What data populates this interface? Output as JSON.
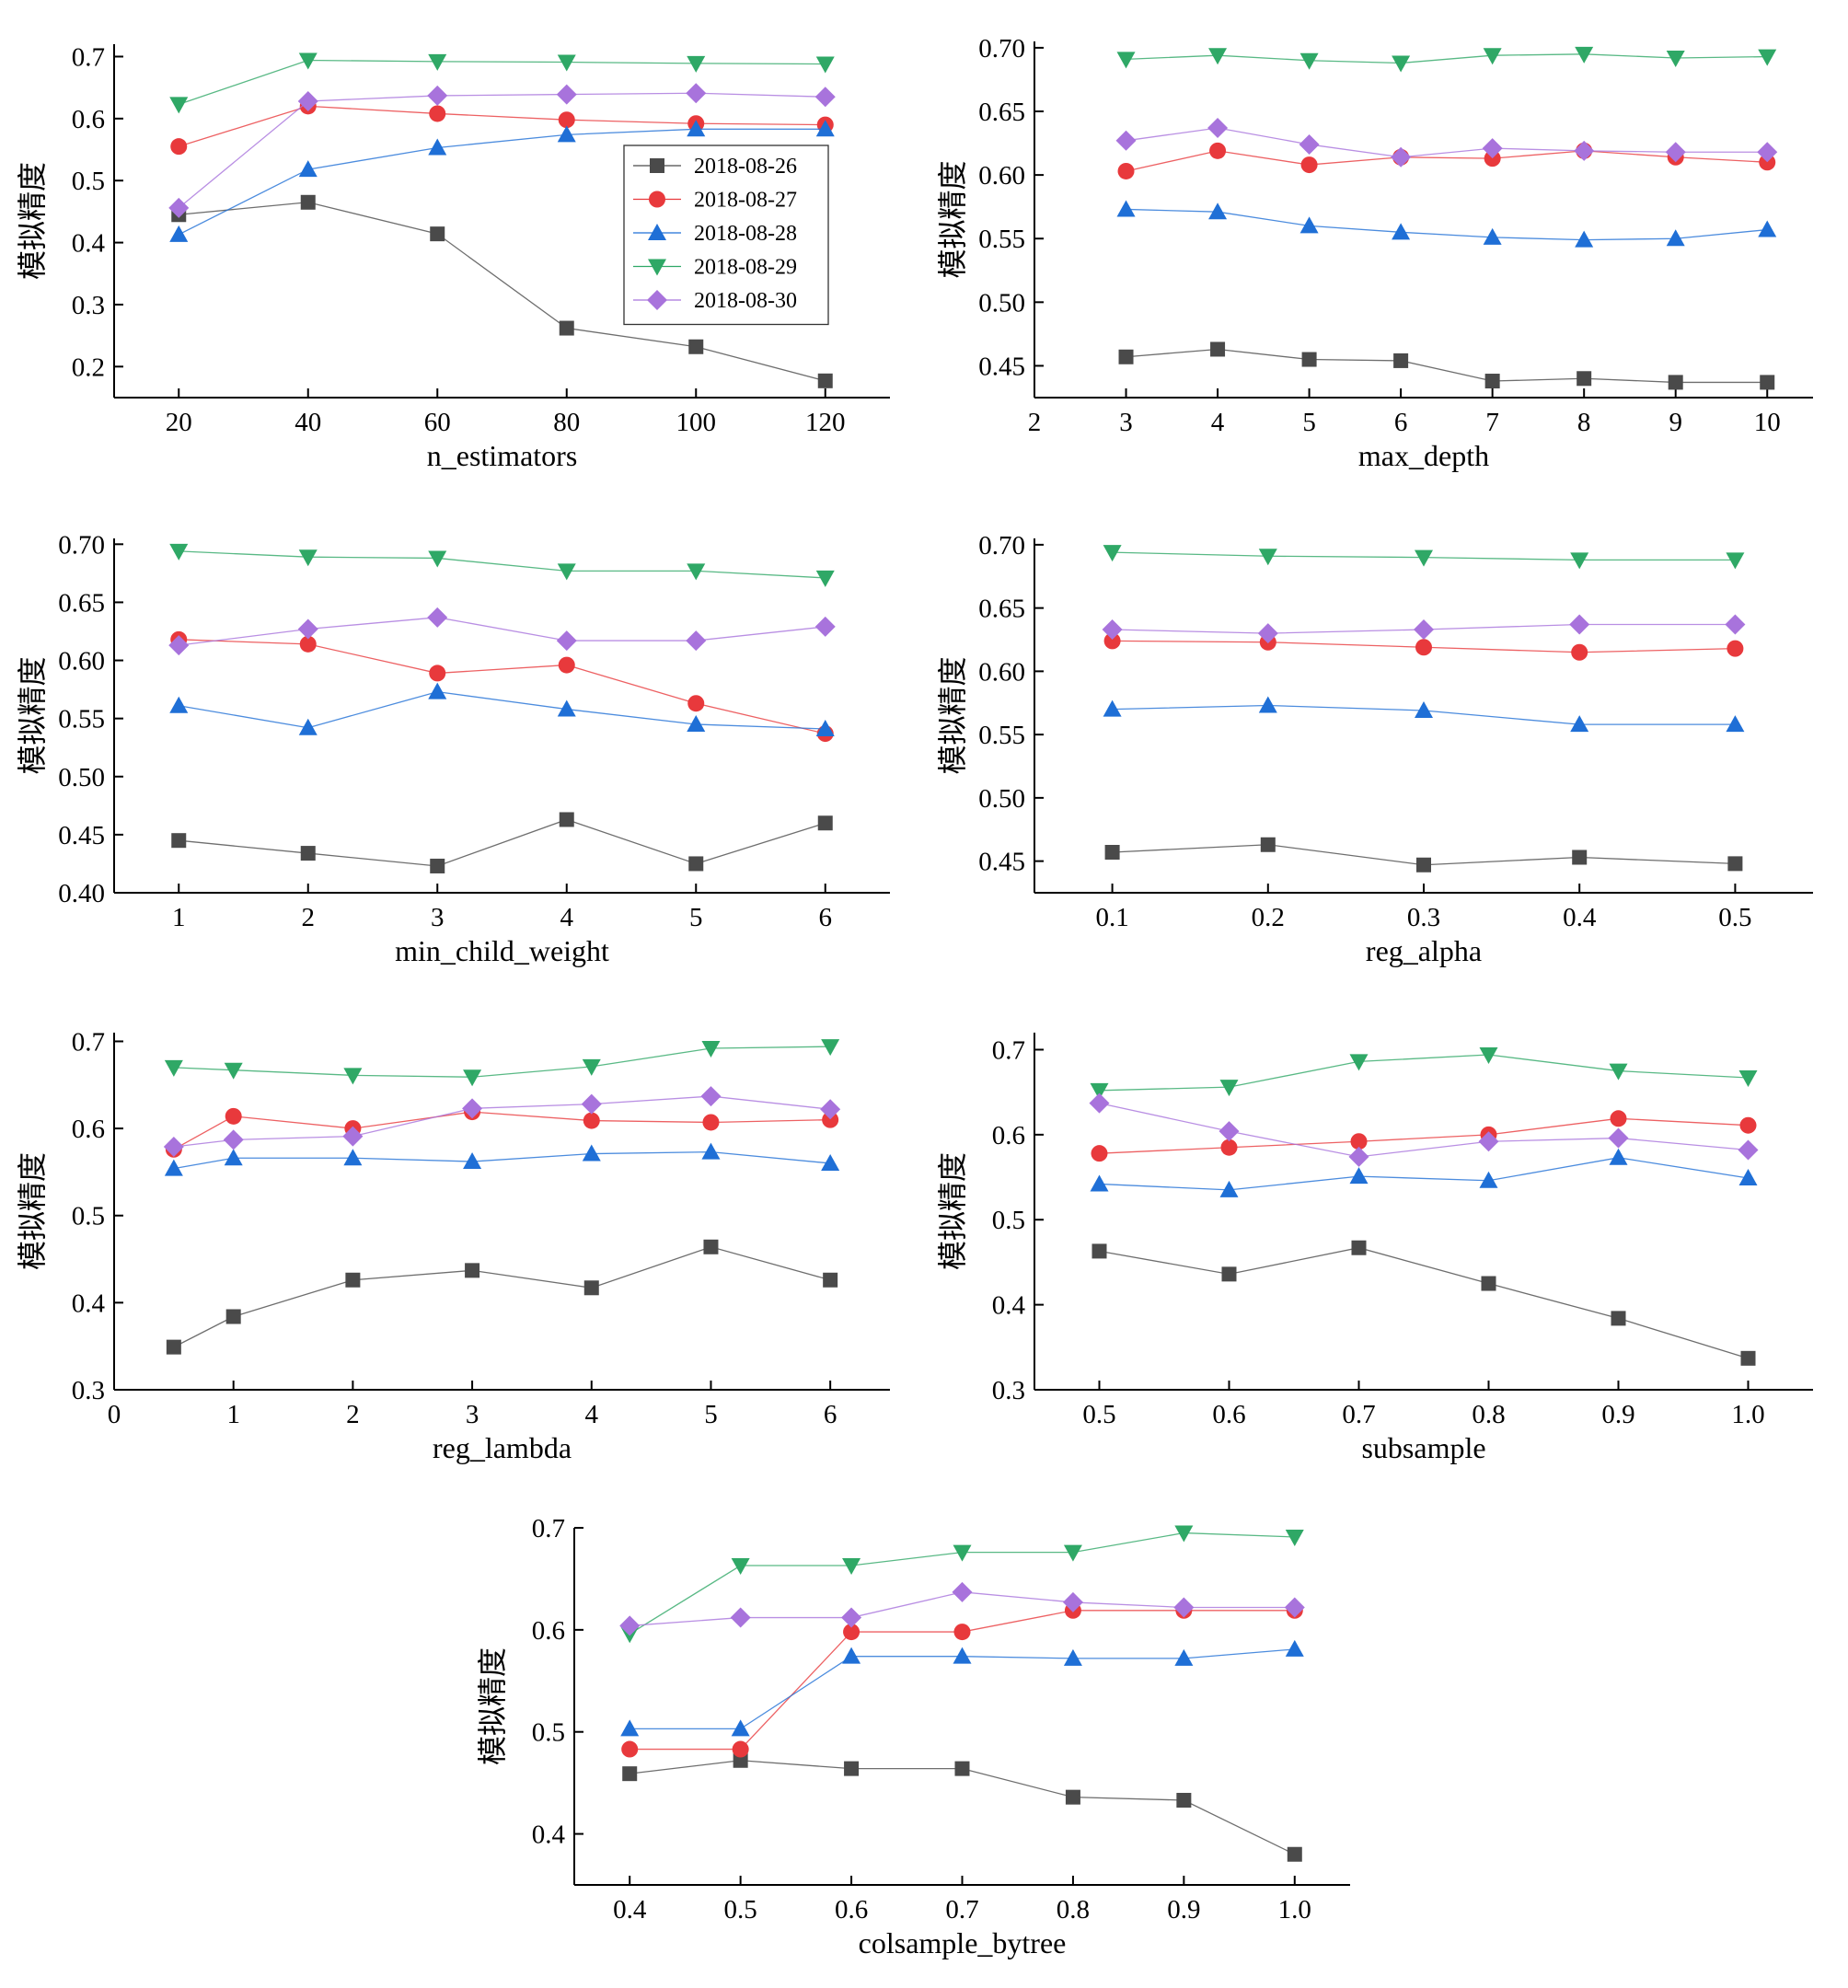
{
  "colors": {
    "2018-08-26": "#4a4a4a",
    "2018-08-27": "#e8393c",
    "2018-08-28": "#1f6fd6",
    "2018-08-29": "#2fa866",
    "2018-08-30": "#a873dc"
  },
  "markers": {
    "2018-08-26": "square",
    "2018-08-27": "circle",
    "2018-08-28": "triangle-up",
    "2018-08-29": "triangle-down",
    "2018-08-30": "diamond"
  },
  "legend": {
    "placement": "inside top-right of first panel",
    "entries": [
      "2018-08-26",
      "2018-08-27",
      "2018-08-28",
      "2018-08-29",
      "2018-08-30"
    ]
  },
  "chart_data": [
    {
      "type": "line",
      "xlabel": "n_estimators",
      "ylabel": "模拟精度",
      "xlim": [
        10,
        130
      ],
      "ylim": [
        0.15,
        0.72
      ],
      "xticks": [
        20,
        40,
        60,
        80,
        100,
        120
      ],
      "xtick_labels": [
        "20",
        "40",
        "60",
        "80",
        "100",
        "120"
      ],
      "yticks": [
        0.2,
        0.3,
        0.4,
        0.5,
        0.6,
        0.7
      ],
      "ytick_labels": [
        "0.2",
        "0.3",
        "0.4",
        "0.5",
        "0.6",
        "0.7"
      ],
      "x": [
        20,
        40,
        60,
        80,
        100,
        120
      ],
      "series": [
        {
          "name": "2018-08-26",
          "values": [
            0.445,
            0.465,
            0.414,
            0.262,
            0.232,
            0.177
          ]
        },
        {
          "name": "2018-08-27",
          "values": [
            0.555,
            0.62,
            0.608,
            0.598,
            0.592,
            0.59
          ]
        },
        {
          "name": "2018-08-28",
          "values": [
            0.413,
            0.518,
            0.553,
            0.574,
            0.583,
            0.583
          ]
        },
        {
          "name": "2018-08-29",
          "values": [
            0.623,
            0.694,
            0.692,
            0.691,
            0.689,
            0.688
          ]
        },
        {
          "name": "2018-08-30",
          "values": [
            0.456,
            0.628,
            0.637,
            0.639,
            0.641,
            0.635
          ]
        }
      ],
      "legend": true
    },
    {
      "type": "line",
      "xlabel": "max_depth",
      "ylabel": "模拟精度",
      "xlim": [
        2,
        10.5
      ],
      "ylim": [
        0.425,
        0.705
      ],
      "xticks": [
        2,
        3,
        4,
        5,
        6,
        7,
        8,
        9,
        10
      ],
      "xtick_labels": [
        "2",
        "3",
        "4",
        "5",
        "6",
        "7",
        "8",
        "9",
        "10"
      ],
      "yticks": [
        0.45,
        0.5,
        0.55,
        0.6,
        0.65,
        0.7
      ],
      "ytick_labels": [
        "0.45",
        "0.50",
        "0.55",
        "0.60",
        "0.65",
        "0.70"
      ],
      "x": [
        3,
        4,
        5,
        6,
        7,
        8,
        9,
        10
      ],
      "series": [
        {
          "name": "2018-08-26",
          "values": [
            0.457,
            0.463,
            0.455,
            0.454,
            0.438,
            0.44,
            0.437,
            0.437
          ]
        },
        {
          "name": "2018-08-27",
          "values": [
            0.603,
            0.619,
            0.608,
            0.614,
            0.613,
            0.619,
            0.614,
            0.61
          ]
        },
        {
          "name": "2018-08-28",
          "values": [
            0.573,
            0.571,
            0.56,
            0.555,
            0.551,
            0.549,
            0.55,
            0.557
          ]
        },
        {
          "name": "2018-08-29",
          "values": [
            0.691,
            0.694,
            0.69,
            0.688,
            0.694,
            0.695,
            0.692,
            0.693
          ]
        },
        {
          "name": "2018-08-30",
          "values": [
            0.627,
            0.637,
            0.624,
            0.614,
            0.621,
            0.619,
            0.618,
            0.618
          ]
        }
      ],
      "legend": false
    },
    {
      "type": "line",
      "xlabel": "min_child_weight",
      "ylabel": "模拟精度",
      "xlim": [
        0.5,
        6.5
      ],
      "ylim": [
        0.4,
        0.705
      ],
      "xticks": [
        1,
        2,
        3,
        4,
        5,
        6
      ],
      "xtick_labels": [
        "1",
        "2",
        "3",
        "4",
        "5",
        "6"
      ],
      "yticks": [
        0.4,
        0.45,
        0.5,
        0.55,
        0.6,
        0.65,
        0.7
      ],
      "ytick_labels": [
        "0.40",
        "0.45",
        "0.50",
        "0.55",
        "0.60",
        "0.65",
        "0.70"
      ],
      "x": [
        1,
        2,
        3,
        4,
        5,
        6
      ],
      "series": [
        {
          "name": "2018-08-26",
          "values": [
            0.445,
            0.434,
            0.423,
            0.463,
            0.425,
            0.46
          ]
        },
        {
          "name": "2018-08-27",
          "values": [
            0.618,
            0.614,
            0.589,
            0.596,
            0.563,
            0.537
          ]
        },
        {
          "name": "2018-08-28",
          "values": [
            0.561,
            0.542,
            0.573,
            0.558,
            0.545,
            0.541
          ]
        },
        {
          "name": "2018-08-29",
          "values": [
            0.694,
            0.689,
            0.688,
            0.677,
            0.677,
            0.671
          ]
        },
        {
          "name": "2018-08-30",
          "values": [
            0.613,
            0.627,
            0.637,
            0.617,
            0.617,
            0.629
          ]
        }
      ],
      "legend": false
    },
    {
      "type": "line",
      "xlabel": "reg_alpha",
      "ylabel": "模拟精度",
      "xlim": [
        0.05,
        0.55
      ],
      "ylim": [
        0.425,
        0.705
      ],
      "xticks": [
        0.1,
        0.2,
        0.3,
        0.4,
        0.5
      ],
      "xtick_labels": [
        "0.1",
        "0.2",
        "0.3",
        "0.4",
        "0.5"
      ],
      "yticks": [
        0.45,
        0.5,
        0.55,
        0.6,
        0.65,
        0.7
      ],
      "ytick_labels": [
        "0.45",
        "0.50",
        "0.55",
        "0.60",
        "0.65",
        "0.70"
      ],
      "x": [
        0.1,
        0.2,
        0.3,
        0.4,
        0.5
      ],
      "series": [
        {
          "name": "2018-08-26",
          "values": [
            0.457,
            0.463,
            0.447,
            0.453,
            0.448
          ]
        },
        {
          "name": "2018-08-27",
          "values": [
            0.624,
            0.623,
            0.619,
            0.615,
            0.618
          ]
        },
        {
          "name": "2018-08-28",
          "values": [
            0.57,
            0.573,
            0.569,
            0.558,
            0.558
          ]
        },
        {
          "name": "2018-08-29",
          "values": [
            0.694,
            0.691,
            0.69,
            0.688,
            0.688
          ]
        },
        {
          "name": "2018-08-30",
          "values": [
            0.633,
            0.63,
            0.633,
            0.637,
            0.637
          ]
        }
      ],
      "legend": false
    },
    {
      "type": "line",
      "xlabel": "reg_lambda",
      "ylabel": "模拟精度",
      "xlim": [
        0,
        6.5
      ],
      "ylim": [
        0.3,
        0.71
      ],
      "xticks": [
        0,
        1,
        2,
        3,
        4,
        5,
        6
      ],
      "xtick_labels": [
        "0",
        "1",
        "2",
        "3",
        "4",
        "5",
        "6"
      ],
      "yticks": [
        0.3,
        0.4,
        0.5,
        0.6,
        0.7
      ],
      "ytick_labels": [
        "0.3",
        "0.4",
        "0.5",
        "0.6",
        "0.7"
      ],
      "x": [
        0.5,
        1,
        2,
        3,
        4,
        5,
        6
      ],
      "series": [
        {
          "name": "2018-08-26",
          "values": [
            0.349,
            0.384,
            0.426,
            0.437,
            0.417,
            0.464,
            0.426
          ]
        },
        {
          "name": "2018-08-27",
          "values": [
            0.576,
            0.614,
            0.6,
            0.619,
            0.609,
            0.607,
            0.61
          ]
        },
        {
          "name": "2018-08-28",
          "values": [
            0.554,
            0.566,
            0.566,
            0.562,
            0.571,
            0.573,
            0.56
          ]
        },
        {
          "name": "2018-08-29",
          "values": [
            0.67,
            0.667,
            0.661,
            0.659,
            0.671,
            0.692,
            0.694
          ]
        },
        {
          "name": "2018-08-30",
          "values": [
            0.579,
            0.587,
            0.591,
            0.623,
            0.628,
            0.637,
            0.622
          ]
        }
      ],
      "legend": false
    },
    {
      "type": "line",
      "xlabel": "subsample",
      "ylabel": "模拟精度",
      "xlim": [
        0.45,
        1.05
      ],
      "ylim": [
        0.3,
        0.72
      ],
      "xticks": [
        0.5,
        0.6,
        0.7,
        0.8,
        0.9,
        1.0
      ],
      "xtick_labels": [
        "0.5",
        "0.6",
        "0.7",
        "0.8",
        "0.9",
        "1.0"
      ],
      "yticks": [
        0.3,
        0.4,
        0.5,
        0.6,
        0.7
      ],
      "ytick_labels": [
        "0.3",
        "0.4",
        "0.5",
        "0.6",
        "0.7"
      ],
      "x": [
        0.5,
        0.6,
        0.7,
        0.8,
        0.9,
        1.0
      ],
      "series": [
        {
          "name": "2018-08-26",
          "values": [
            0.463,
            0.436,
            0.467,
            0.425,
            0.384,
            0.337
          ]
        },
        {
          "name": "2018-08-27",
          "values": [
            0.578,
            0.585,
            0.592,
            0.6,
            0.619,
            0.611
          ]
        },
        {
          "name": "2018-08-28",
          "values": [
            0.542,
            0.535,
            0.551,
            0.546,
            0.573,
            0.549
          ]
        },
        {
          "name": "2018-08-29",
          "values": [
            0.652,
            0.656,
            0.686,
            0.694,
            0.675,
            0.667
          ]
        },
        {
          "name": "2018-08-30",
          "values": [
            0.637,
            0.604,
            0.574,
            0.592,
            0.596,
            0.582
          ]
        }
      ],
      "legend": false
    },
    {
      "type": "line",
      "xlabel": "colsample_bytree",
      "ylabel": "模拟精度",
      "xlim": [
        0.35,
        1.05
      ],
      "ylim": [
        0.35,
        0.7
      ],
      "xticks": [
        0.4,
        0.5,
        0.6,
        0.7,
        0.8,
        0.9,
        1.0
      ],
      "xtick_labels": [
        "0.4",
        "0.5",
        "0.6",
        "0.7",
        "0.8",
        "0.9",
        "1.0"
      ],
      "yticks": [
        0.4,
        0.5,
        0.6,
        0.7
      ],
      "ytick_labels": [
        "0.4",
        "0.5",
        "0.6",
        "0.7"
      ],
      "x": [
        0.4,
        0.5,
        0.6,
        0.7,
        0.8,
        0.9,
        1.0
      ],
      "series": [
        {
          "name": "2018-08-26",
          "values": [
            0.459,
            0.472,
            0.464,
            0.464,
            0.436,
            0.433,
            0.38
          ]
        },
        {
          "name": "2018-08-27",
          "values": [
            0.483,
            0.483,
            0.598,
            0.598,
            0.619,
            0.619,
            0.619
          ]
        },
        {
          "name": "2018-08-28",
          "values": [
            0.503,
            0.503,
            0.574,
            0.574,
            0.572,
            0.572,
            0.581
          ]
        },
        {
          "name": "2018-08-29",
          "values": [
            0.596,
            0.663,
            0.663,
            0.676,
            0.676,
            0.695,
            0.691
          ]
        },
        {
          "name": "2018-08-30",
          "values": [
            0.604,
            0.612,
            0.612,
            0.637,
            0.627,
            0.622,
            0.622
          ]
        }
      ],
      "legend": false
    }
  ]
}
